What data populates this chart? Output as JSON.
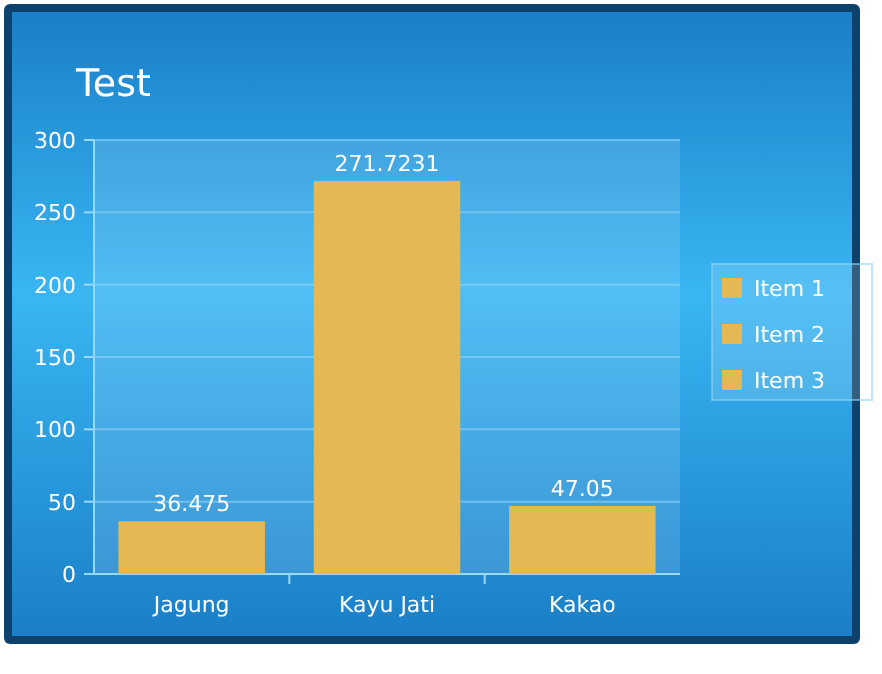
{
  "chart_data": {
    "type": "bar",
    "title": "Test",
    "categories": [
      "Jagung",
      "Kayu Jati",
      "Kakao"
    ],
    "series": [
      {
        "name": "Item 1",
        "color": "#e4b852",
        "values": [
          36.475,
          null,
          null
        ]
      },
      {
        "name": "Item 2",
        "color": "#e4b852",
        "values": [
          null,
          271.7231,
          null
        ]
      },
      {
        "name": "Item 3",
        "color": "#e4b852",
        "values": [
          null,
          null,
          47.05
        ]
      }
    ],
    "stacked": true,
    "ylim": [
      0,
      300
    ],
    "yticks": [
      0,
      50,
      100,
      150,
      200,
      250,
      300
    ],
    "grid": "y",
    "legend": "right",
    "data_labels": true
  }
}
